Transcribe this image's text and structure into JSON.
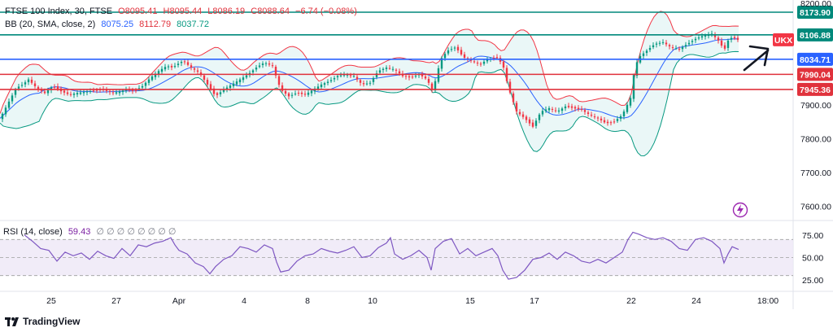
{
  "header": {
    "symbol_label": "FTSE 100 Index, 30, FTSE",
    "open": "O8095.41",
    "high": "H8095.44",
    "low": "L8086.19",
    "close": "C8088.64",
    "change": "−6.74 (−0.08%)",
    "bb_label": "BB (20, SMA, close, 2)",
    "bb_basis": "8075.25",
    "bb_upper": "8112.79",
    "bb_lower": "8037.72"
  },
  "rsi_legend": {
    "label": "RSI (14, close)",
    "value": "59.43",
    "extras": "∅ ∅ ∅ ∅ ∅ ∅ ∅ ∅"
  },
  "branding": {
    "name": "TradingView"
  },
  "symbol_badge": "UKX",
  "colors": {
    "up": "#089981",
    "down": "#f23645",
    "bb_upper": "#f23645",
    "bb_lower": "#089981",
    "bb_basis": "#2962ff",
    "bb_fill": "#d8f0f0",
    "rsi": "#7e57c2",
    "rsi_band": "#ede7f6",
    "green_line": "#00897b",
    "blue_line": "#2962ff",
    "red_line": "#e0323c",
    "arrow": "#131722"
  },
  "chart_data": {
    "type": "candlestick",
    "instrument": "FTSE 100 Index",
    "interval": "30",
    "price_axis": {
      "ticks": [
        "8200.00",
        "7900.00",
        "7800.00",
        "7700.00",
        "7600.00"
      ],
      "ylim": [
        7560,
        8210
      ]
    },
    "rsi_axis": {
      "ticks": [
        "75.00",
        "50.00",
        "25.00"
      ],
      "ylim": [
        18,
        82
      ],
      "band": [
        30,
        70
      ]
    },
    "x_tick_labels": [
      "25",
      "27",
      "Apr",
      "4",
      "8",
      "10",
      "15",
      "17",
      "22",
      "24",
      "18:00"
    ],
    "horizontal_levels": [
      {
        "price": 8173.9,
        "label": "8173.90",
        "color": "green"
      },
      {
        "price": 8106.88,
        "label": "8106.88",
        "color": "green"
      },
      {
        "price": 8034.71,
        "label": "8034.71",
        "color": "blue"
      },
      {
        "price": 7990.04,
        "label": "7990.04",
        "color": "red"
      },
      {
        "price": 7945.36,
        "label": "7945.36",
        "color": "red"
      }
    ],
    "close_path": [
      [
        0,
        7860
      ],
      [
        10,
        7905
      ],
      [
        20,
        7950
      ],
      [
        28,
        7960
      ],
      [
        35,
        7975
      ],
      [
        45,
        7950
      ],
      [
        55,
        7935
      ],
      [
        65,
        7955
      ],
      [
        75,
        7940
      ],
      [
        85,
        7930
      ],
      [
        95,
        7935
      ],
      [
        110,
        7940
      ],
      [
        125,
        7945
      ],
      [
        140,
        7935
      ],
      [
        155,
        7945
      ],
      [
        165,
        7940
      ],
      [
        175,
        7955
      ],
      [
        185,
        7980
      ],
      [
        195,
        8000
      ],
      [
        205,
        8015
      ],
      [
        212,
        8010
      ],
      [
        218,
        8020
      ],
      [
        225,
        8030
      ],
      [
        235,
        8010
      ],
      [
        245,
        7995
      ],
      [
        255,
        7960
      ],
      [
        265,
        7925
      ],
      [
        275,
        7945
      ],
      [
        285,
        7960
      ],
      [
        295,
        7975
      ],
      [
        305,
        7990
      ],
      [
        315,
        8010
      ],
      [
        325,
        8025
      ],
      [
        335,
        8015
      ],
      [
        345,
        7945
      ],
      [
        355,
        7925
      ],
      [
        365,
        7935
      ],
      [
        375,
        7930
      ],
      [
        385,
        7945
      ],
      [
        395,
        7960
      ],
      [
        405,
        7970
      ],
      [
        415,
        7985
      ],
      [
        425,
        7990
      ],
      [
        435,
        7985
      ],
      [
        445,
        7960
      ],
      [
        455,
        7965
      ],
      [
        465,
        8000
      ],
      [
        475,
        8010
      ],
      [
        485,
        8005
      ],
      [
        495,
        7985
      ],
      [
        505,
        7980
      ],
      [
        515,
        7990
      ],
      [
        525,
        7975
      ],
      [
        532,
        7940
      ],
      [
        537,
        7990
      ],
      [
        542,
        8035
      ],
      [
        550,
        8060
      ],
      [
        560,
        8070
      ],
      [
        570,
        8040
      ],
      [
        580,
        8030
      ],
      [
        590,
        8020
      ],
      [
        600,
        8035
      ],
      [
        610,
        8040
      ],
      [
        618,
        8020
      ],
      [
        625,
        7950
      ],
      [
        635,
        7880
      ],
      [
        645,
        7860
      ],
      [
        655,
        7835
      ],
      [
        665,
        7880
      ],
      [
        675,
        7890
      ],
      [
        685,
        7880
      ],
      [
        695,
        7895
      ],
      [
        705,
        7890
      ],
      [
        715,
        7885
      ],
      [
        725,
        7870
      ],
      [
        735,
        7860
      ],
      [
        745,
        7845
      ],
      [
        755,
        7850
      ],
      [
        765,
        7870
      ],
      [
        775,
        7920
      ],
      [
        780,
        8005
      ],
      [
        785,
        8040
      ],
      [
        795,
        8060
      ],
      [
        805,
        8080
      ],
      [
        815,
        8085
      ],
      [
        825,
        8070
      ],
      [
        835,
        8065
      ],
      [
        845,
        8080
      ],
      [
        855,
        8095
      ],
      [
        865,
        8105
      ],
      [
        875,
        8110
      ],
      [
        885,
        8085
      ],
      [
        890,
        8060
      ],
      [
        895,
        8090
      ],
      [
        900,
        8100
      ],
      [
        910,
        8089
      ]
    ],
    "rsi_path": [
      [
        30,
        75
      ],
      [
        40,
        68
      ],
      [
        50,
        60
      ],
      [
        60,
        58
      ],
      [
        70,
        46
      ],
      [
        80,
        56
      ],
      [
        90,
        52
      ],
      [
        100,
        55
      ],
      [
        110,
        48
      ],
      [
        120,
        57
      ],
      [
        130,
        52
      ],
      [
        140,
        49
      ],
      [
        150,
        60
      ],
      [
        160,
        52
      ],
      [
        170,
        64
      ],
      [
        180,
        62
      ],
      [
        190,
        66
      ],
      [
        200,
        68
      ],
      [
        210,
        72
      ],
      [
        215,
        64
      ],
      [
        220,
        58
      ],
      [
        230,
        54
      ],
      [
        240,
        44
      ],
      [
        250,
        40
      ],
      [
        258,
        32
      ],
      [
        265,
        40
      ],
      [
        275,
        48
      ],
      [
        285,
        52
      ],
      [
        295,
        62
      ],
      [
        305,
        60
      ],
      [
        315,
        56
      ],
      [
        325,
        64
      ],
      [
        335,
        60
      ],
      [
        340,
        45
      ],
      [
        345,
        34
      ],
      [
        355,
        36
      ],
      [
        365,
        46
      ],
      [
        375,
        52
      ],
      [
        385,
        54
      ],
      [
        395,
        60
      ],
      [
        405,
        57
      ],
      [
        415,
        55
      ],
      [
        425,
        58
      ],
      [
        435,
        62
      ],
      [
        445,
        50
      ],
      [
        455,
        52
      ],
      [
        465,
        61
      ],
      [
        475,
        66
      ],
      [
        480,
        72
      ],
      [
        485,
        54
      ],
      [
        495,
        48
      ],
      [
        505,
        52
      ],
      [
        515,
        58
      ],
      [
        525,
        50
      ],
      [
        530,
        36
      ],
      [
        535,
        60
      ],
      [
        545,
        68
      ],
      [
        555,
        71
      ],
      [
        565,
        54
      ],
      [
        575,
        60
      ],
      [
        585,
        52
      ],
      [
        595,
        56
      ],
      [
        605,
        60
      ],
      [
        612,
        52
      ],
      [
        618,
        36
      ],
      [
        625,
        26
      ],
      [
        635,
        28
      ],
      [
        645,
        36
      ],
      [
        655,
        48
      ],
      [
        665,
        50
      ],
      [
        675,
        55
      ],
      [
        685,
        48
      ],
      [
        695,
        56
      ],
      [
        705,
        52
      ],
      [
        715,
        46
      ],
      [
        725,
        44
      ],
      [
        735,
        48
      ],
      [
        745,
        44
      ],
      [
        755,
        50
      ],
      [
        765,
        56
      ],
      [
        772,
        70
      ],
      [
        778,
        78
      ],
      [
        785,
        76
      ],
      [
        795,
        72
      ],
      [
        805,
        70
      ],
      [
        815,
        72
      ],
      [
        825,
        68
      ],
      [
        835,
        60
      ],
      [
        845,
        58
      ],
      [
        855,
        70
      ],
      [
        865,
        72
      ],
      [
        875,
        68
      ],
      [
        885,
        60
      ],
      [
        890,
        44
      ],
      [
        895,
        54
      ],
      [
        900,
        62
      ],
      [
        908,
        59
      ]
    ]
  }
}
